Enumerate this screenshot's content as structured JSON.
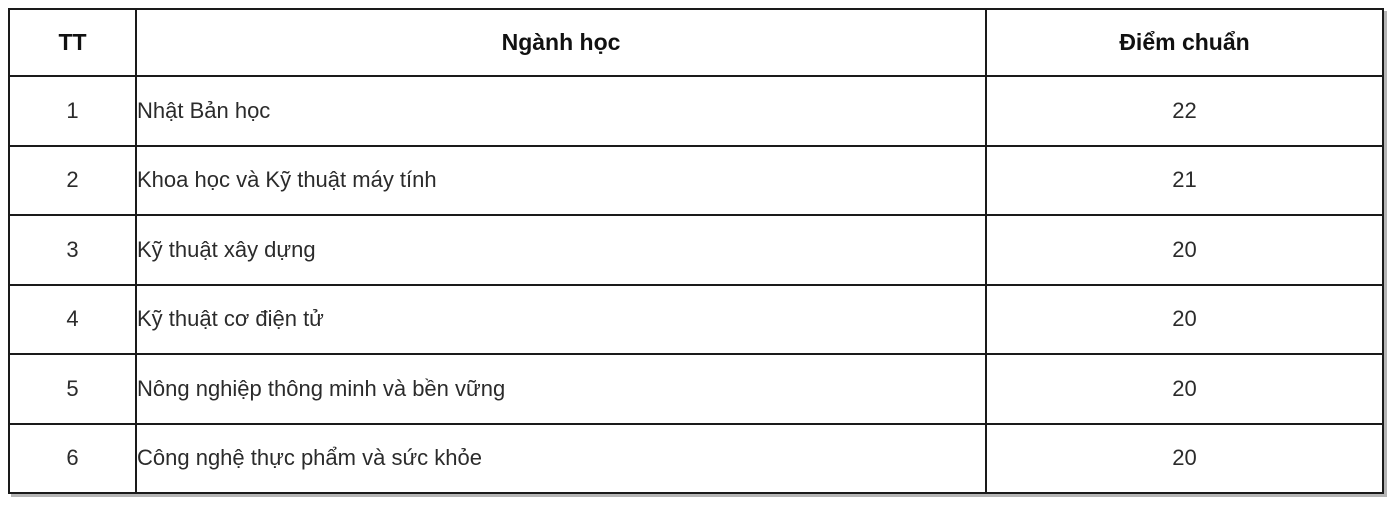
{
  "table": {
    "border_color": "#1a1a1a",
    "text_color": "#2b2b2b",
    "header_text_color": "#111111",
    "columns": [
      {
        "key": "tt",
        "label": "TT"
      },
      {
        "key": "nganh",
        "label": "Ngành học"
      },
      {
        "key": "diem",
        "label": "Điểm chuẩn"
      }
    ],
    "rows": [
      {
        "tt": "1",
        "nganh": "Nhật Bản học",
        "diem": "22"
      },
      {
        "tt": "2",
        "nganh": "Khoa học và Kỹ thuật máy tính",
        "diem": "21"
      },
      {
        "tt": "3",
        "nganh": "Kỹ thuật xây dựng",
        "diem": "20"
      },
      {
        "tt": "4",
        "nganh": "Kỹ thuật cơ điện tử",
        "diem": "20"
      },
      {
        "tt": "5",
        "nganh": "Nông nghiệp thông minh và bền vững",
        "diem": "20"
      },
      {
        "tt": "6",
        "nganh": "Công nghệ thực phẩm và sức khỏe",
        "diem": "20"
      }
    ]
  }
}
